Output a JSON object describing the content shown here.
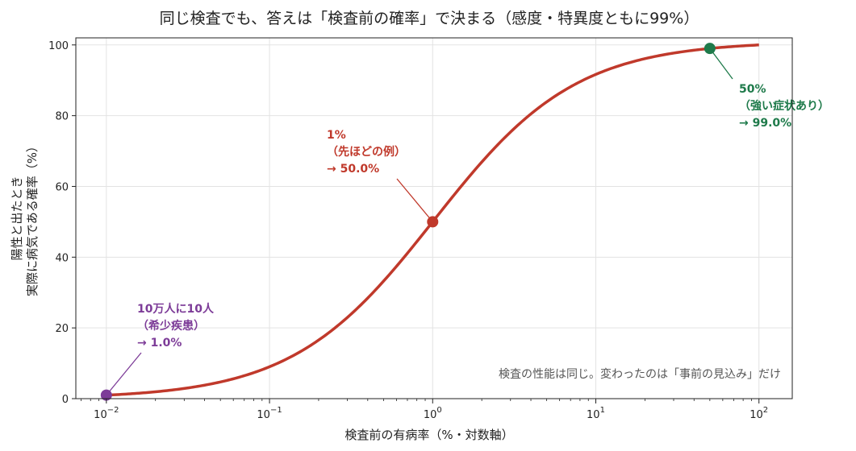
{
  "chart_data": {
    "type": "line",
    "title": "同じ検査でも、答えは「検査前の確率」で決まる（感度・特異度ともに99%）",
    "xlabel": "検査前の有病率（%・対数軸）",
    "ylabel_lines": [
      "陽性と出たとき",
      "実際に病気である確率（%）"
    ],
    "x_scale": "log",
    "xlim": [
      0.0065,
      160
    ],
    "ylim": [
      0,
      102
    ],
    "x_ticks": [
      {
        "value": 0.01,
        "base": "10",
        "exp": "−2"
      },
      {
        "value": 0.1,
        "base": "10",
        "exp": "−1"
      },
      {
        "value": 1,
        "base": "10",
        "exp": "0"
      },
      {
        "value": 10,
        "base": "10",
        "exp": "1"
      },
      {
        "value": 100,
        "base": "10",
        "exp": "2"
      }
    ],
    "y_ticks": [
      "0",
      "20",
      "40",
      "60",
      "80",
      "100"
    ],
    "sensitivity": 0.99,
    "specificity": 0.99,
    "x_range": [
      0.01,
      100
    ],
    "grid": true,
    "curve_color": "#c0392b",
    "points": [
      {
        "x": 0.01,
        "y": 1.0,
        "color": "#7d3c98",
        "label_lines": [
          "10万人に10人",
          "（希少疾患）",
          "→ 1.0%"
        ]
      },
      {
        "x": 1,
        "y": 50.0,
        "color": "#c0392b",
        "label_lines": [
          "1%",
          "（先ほどの例）",
          "→ 50.0%"
        ]
      },
      {
        "x": 50,
        "y": 99.0,
        "color": "#1e7a4a",
        "label_lines": [
          "50%",
          "（強い症状あり）",
          "→ 99.0%"
        ]
      }
    ],
    "note": "検査の性能は同じ。変わったのは「事前の見込み」だけ"
  }
}
